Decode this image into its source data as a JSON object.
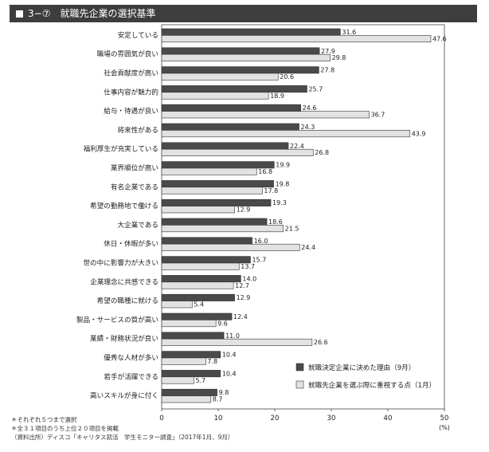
{
  "header": {
    "fig_number": "3−⑦",
    "title": "就職先企業の選択基準"
  },
  "notes": [
    "＊それぞれ５つまで選択",
    "＊全３１項目のうち上位２０項目を掲載",
    "（資料出所）ディスコ「キャリタス就活　学生モニター調査」（2017年1月、9月）"
  ],
  "chart_data": {
    "type": "bar",
    "orientation": "horizontal",
    "title": "就職先企業の選択基準",
    "categories": [
      "安定している",
      "職場の雰囲気が良い",
      "社会貢献度が高い",
      "仕事内容が魅力的",
      "給与・待遇が良い",
      "将来性がある",
      "福利厚生が充実している",
      "業界順位が高い",
      "有名企業である",
      "希望の勤務地で働ける",
      "大企業である",
      "休日・休暇が多い",
      "世の中に影響力が大きい",
      "企業理念に共感できる",
      "希望の職種に就ける",
      "製品・サービスの質が高い",
      "業績・財務状況が良い",
      "優秀な人材が多い",
      "若手が活躍できる",
      "高いスキルが身に付く"
    ],
    "series": [
      {
        "name": "就職決定企業に決めた理由（9月）",
        "color": "#4a4a4a",
        "values": [
          31.6,
          27.9,
          27.8,
          25.7,
          24.6,
          24.3,
          22.4,
          19.9,
          19.8,
          19.3,
          18.6,
          16.0,
          15.7,
          14.0,
          12.9,
          12.4,
          11.0,
          10.4,
          10.4,
          9.8
        ]
      },
      {
        "name": "就職先企業を選ぶ際に重視する点（1月）",
        "color": "#e2e2e2",
        "values": [
          47.6,
          29.8,
          20.6,
          18.9,
          36.7,
          43.9,
          26.8,
          16.8,
          17.8,
          12.9,
          21.5,
          24.4,
          13.7,
          12.7,
          5.4,
          9.6,
          26.6,
          7.8,
          5.7,
          8.7
        ]
      }
    ],
    "x_ticks": [
      0,
      10,
      20,
      30,
      40,
      50
    ],
    "xlim": [
      0,
      50
    ],
    "unit_label": "(%)",
    "legend_position": "bottom-right",
    "grid": false
  }
}
